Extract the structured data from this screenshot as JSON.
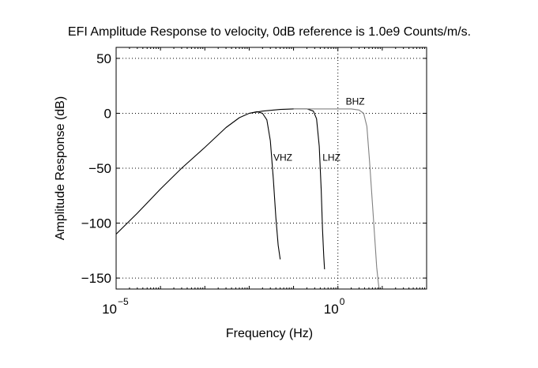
{
  "chart_data": {
    "type": "line",
    "title": "EFI Amplitude Response to velocity, 0dB reference is 1.0e9 Counts/m/s.",
    "xlabel": "Frequency (Hz)",
    "ylabel": "Amplitude Response (dB)",
    "x_scale": "log",
    "xlim": [
      1e-05,
      100
    ],
    "ylim": [
      -160,
      60
    ],
    "grid": true,
    "x_ticks": [
      {
        "value": 1e-05,
        "base": "10",
        "exponent": "−5"
      },
      {
        "value": 1,
        "base": "10",
        "exponent": "0"
      }
    ],
    "y_ticks": [
      {
        "value": 50,
        "label": "50"
      },
      {
        "value": 0,
        "label": "0"
      },
      {
        "value": -50,
        "label": "−50"
      },
      {
        "value": -100,
        "label": "−100"
      },
      {
        "value": -150,
        "label": "−150"
      }
    ],
    "series": [
      {
        "name": "VHZ",
        "color": "#000000",
        "x": [
          1e-05,
          3e-05,
          0.0001,
          0.0003,
          0.001,
          0.003,
          0.006,
          0.01,
          0.015,
          0.02,
          0.025,
          0.03,
          0.035,
          0.04,
          0.045,
          0.05
        ],
        "y": [
          -110,
          -91,
          -69,
          -50,
          -31,
          -13,
          -4,
          0,
          1.5,
          0,
          -6,
          -25,
          -60,
          -95,
          -120,
          -133
        ],
        "label": {
          "text": "VHZ",
          "x": 0.035,
          "y": -43
        }
      },
      {
        "name": "LHZ",
        "color": "#000000",
        "x": [
          0.01,
          0.02,
          0.05,
          0.1,
          0.2,
          0.28,
          0.33,
          0.38,
          0.42,
          0.45,
          0.48,
          0.5
        ],
        "y": [
          0,
          2,
          3.5,
          4,
          4,
          2,
          -5,
          -30,
          -70,
          -105,
          -130,
          -142
        ],
        "label": {
          "text": "LHZ",
          "x": 0.45,
          "y": -43
        }
      },
      {
        "name": "BHZ",
        "color": "#808080",
        "x": [
          0.1,
          0.5,
          1,
          2,
          3,
          3.8,
          4.5,
          5.2,
          6,
          6.8,
          7.5,
          8.2,
          8.5
        ],
        "y": [
          4,
          4,
          4,
          4,
          3,
          0,
          -12,
          -45,
          -82,
          -115,
          -140,
          -155,
          -160
        ],
        "label": {
          "text": "BHZ",
          "x": 1.5,
          "y": 8
        }
      }
    ]
  }
}
